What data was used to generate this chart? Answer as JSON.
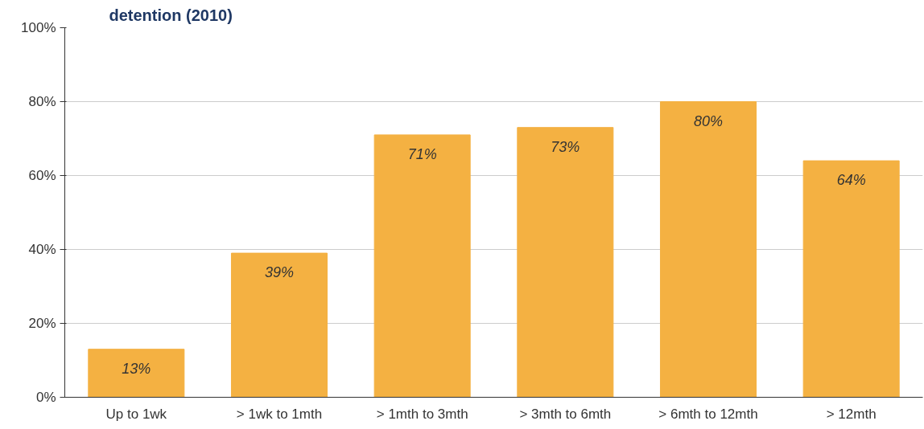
{
  "chart_data": {
    "type": "bar",
    "title": "detention (2010)",
    "categories": [
      "Up to 1wk",
      "> 1wk to 1mth",
      "> 1mth to 3mth",
      "> 3mth to 6mth",
      "> 6mth to 12mth",
      "> 12mth"
    ],
    "values": [
      13,
      39,
      71,
      73,
      80,
      64
    ],
    "color": "#f4b142",
    "value_labels": [
      "13%",
      "39%",
      "71%",
      "73%",
      "80%",
      "64%"
    ],
    "ylim": [
      0,
      100
    ],
    "yticks": [
      {
        "value": 0,
        "label": "0%"
      },
      {
        "value": 20,
        "label": "20%"
      },
      {
        "value": 40,
        "label": "40%"
      },
      {
        "value": 60,
        "label": "60%"
      },
      {
        "value": 80,
        "label": "80%"
      },
      {
        "value": 100,
        "label": "100%"
      }
    ],
    "grid": "y"
  }
}
